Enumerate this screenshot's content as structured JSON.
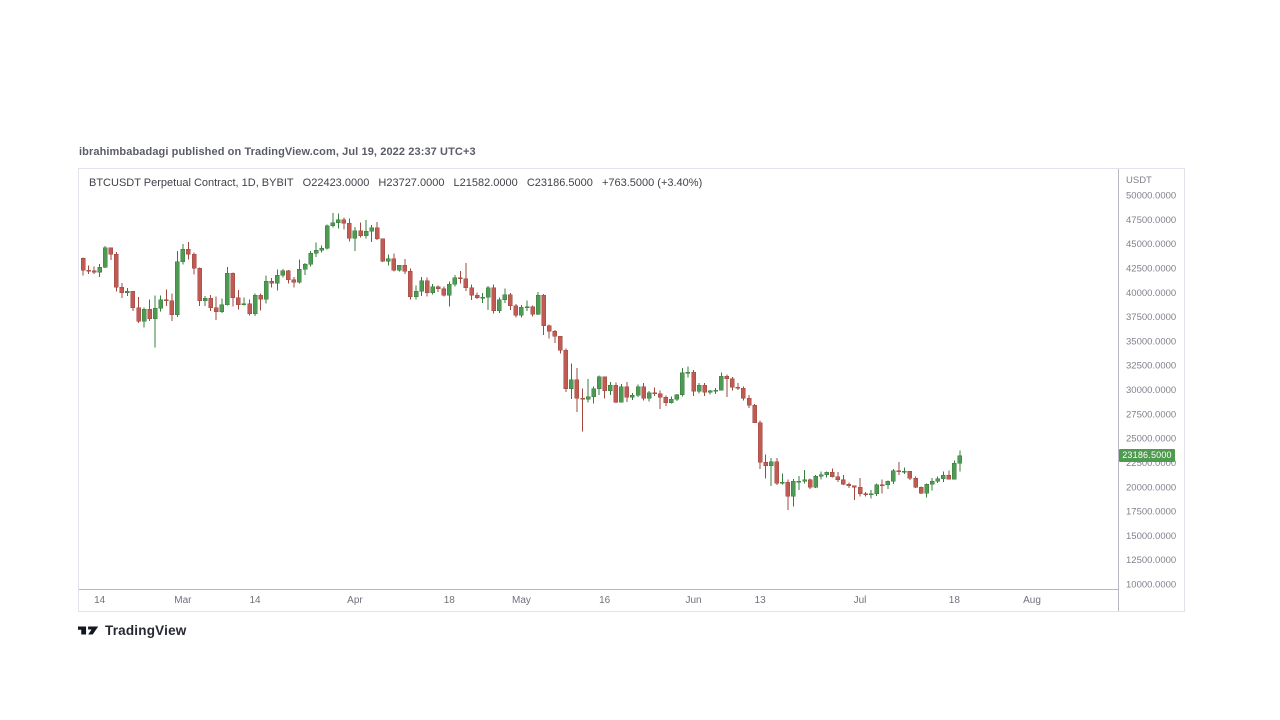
{
  "attribution": {
    "text": "ibrahimbabadagi published on TradingView.com, Jul 19, 2022 23:37 UTC+3"
  },
  "chart_header": {
    "symbol_title": "BTCUSDT Perpetual Contract, 1D, BYBIT",
    "open": "O22423.0000",
    "high": "H23727.0000",
    "low": "L21582.0000",
    "close": "C23186.5000",
    "change": "+763.5000 (+3.40%)"
  },
  "price_axis": {
    "currency": "USDT",
    "ticks": [
      "50000.0000",
      "47500.0000",
      "45000.0000",
      "42500.0000",
      "40000.0000",
      "37500.0000",
      "35000.0000",
      "32500.0000",
      "30000.0000",
      "27500.0000",
      "25000.0000",
      "22500.0000",
      "20000.0000",
      "17500.0000",
      "15000.0000",
      "12500.0000",
      "10000.0000"
    ],
    "last_price_label": "23186.5000",
    "last_price_value": 23186.5,
    "last_price_bg": "#4e9a4e"
  },
  "time_axis": {
    "ticks": [
      {
        "label": "14",
        "i": 3
      },
      {
        "label": "Mar",
        "i": 18
      },
      {
        "label": "14",
        "i": 31
      },
      {
        "label": "Apr",
        "i": 49
      },
      {
        "label": "18",
        "i": 66
      },
      {
        "label": "May",
        "i": 79
      },
      {
        "label": "16",
        "i": 94
      },
      {
        "label": "Jun",
        "i": 110
      },
      {
        "label": "13",
        "i": 122
      },
      {
        "label": "Jul",
        "i": 140
      },
      {
        "label": "18",
        "i": 157
      },
      {
        "label": "Aug",
        "i": 171
      }
    ]
  },
  "logo": {
    "text": "TradingView"
  },
  "chart_data": {
    "type": "candlestick",
    "title": "BTCUSDT Perpetual Contract, 1D, BYBIT",
    "symbol": "BTCUSDT",
    "exchange": "BYBIT",
    "interval": "1D",
    "quote_currency": "USDT",
    "start_date": "2022-02-11",
    "end_date": "2022-07-19",
    "ylim": [
      10000,
      50000
    ],
    "y_tick_step": 2500,
    "grid": false,
    "up_color": "#4f9a52",
    "up_border": "#377d3c",
    "down_color": "#c05b53",
    "down_border": "#9f4940",
    "last_close": 23186.5,
    "candles_format": [
      "open",
      "high",
      "low",
      "close"
    ],
    "candles": [
      [
        43500,
        43550,
        41700,
        42250
      ],
      [
        42250,
        42750,
        41880,
        42230
      ],
      [
        42230,
        42650,
        41900,
        42060
      ],
      [
        42060,
        42880,
        41550,
        42550
      ],
      [
        42550,
        44750,
        42480,
        44570
      ],
      [
        44570,
        44580,
        43330,
        43890
      ],
      [
        43890,
        44160,
        40070,
        40520
      ],
      [
        40520,
        40950,
        39430,
        39970
      ],
      [
        39970,
        40440,
        39640,
        40120
      ],
      [
        40120,
        40120,
        38060,
        38390
      ],
      [
        38390,
        39490,
        36830,
        37010
      ],
      [
        37010,
        38430,
        36350,
        38230
      ],
      [
        38230,
        39240,
        37050,
        37250
      ],
      [
        37250,
        39680,
        34320,
        38330
      ],
      [
        38330,
        39670,
        38010,
        39230
      ],
      [
        39230,
        40300,
        38590,
        39120
      ],
      [
        39120,
        39870,
        37020,
        37710
      ],
      [
        37710,
        44220,
        37450,
        43160
      ],
      [
        43160,
        44950,
        42830,
        44420
      ],
      [
        44420,
        45190,
        43350,
        43900
      ],
      [
        43900,
        44100,
        41830,
        42460
      ],
      [
        42460,
        42530,
        38580,
        39150
      ],
      [
        39150,
        39620,
        38600,
        39400
      ],
      [
        39400,
        39700,
        38090,
        38420
      ],
      [
        38420,
        39550,
        37170,
        38010
      ],
      [
        38010,
        39360,
        37870,
        38730
      ],
      [
        38730,
        42590,
        38660,
        41940
      ],
      [
        41940,
        42040,
        38550,
        39420
      ],
      [
        39420,
        40230,
        38230,
        38730
      ],
      [
        38730,
        39470,
        38660,
        38810
      ],
      [
        38810,
        39280,
        37590,
        37790
      ],
      [
        37790,
        39880,
        37580,
        39670
      ],
      [
        39670,
        39890,
        38130,
        39290
      ],
      [
        39290,
        41720,
        38850,
        41140
      ],
      [
        41140,
        41480,
        40500,
        40950
      ],
      [
        40950,
        42330,
        40190,
        41770
      ],
      [
        41770,
        42400,
        41500,
        42200
      ],
      [
        42200,
        42310,
        40920,
        41280
      ],
      [
        41280,
        41580,
        40470,
        41020
      ],
      [
        41020,
        43390,
        40890,
        42380
      ],
      [
        42380,
        43030,
        41770,
        42890
      ],
      [
        42890,
        44230,
        42660,
        44010
      ],
      [
        44010,
        45120,
        43600,
        44330
      ],
      [
        44330,
        44800,
        44080,
        44540
      ],
      [
        44540,
        46950,
        44420,
        46850
      ],
      [
        46850,
        48150,
        46670,
        47150
      ],
      [
        47150,
        48090,
        46580,
        47470
      ],
      [
        47470,
        47710,
        46450,
        47100
      ],
      [
        47100,
        47600,
        45220,
        45540
      ],
      [
        45540,
        46720,
        44260,
        46300
      ],
      [
        46300,
        47190,
        45620,
        45830
      ],
      [
        45830,
        47430,
        45540,
        46290
      ],
      [
        46290,
        46890,
        45150,
        46620
      ],
      [
        46620,
        47200,
        45390,
        45510
      ],
      [
        45510,
        45520,
        43130,
        43210
      ],
      [
        43210,
        43890,
        42730,
        43450
      ],
      [
        43450,
        43970,
        42110,
        42280
      ],
      [
        42280,
        42800,
        42130,
        42770
      ],
      [
        42770,
        43420,
        41870,
        42160
      ],
      [
        42160,
        42420,
        39250,
        39530
      ],
      [
        39530,
        40700,
        39280,
        40080
      ],
      [
        40080,
        41560,
        39620,
        41160
      ],
      [
        41160,
        41500,
        39560,
        39940
      ],
      [
        39940,
        40870,
        39770,
        40550
      ],
      [
        40550,
        40710,
        40010,
        40380
      ],
      [
        40380,
        40600,
        39550,
        39680
      ],
      [
        39680,
        41120,
        38540,
        40800
      ],
      [
        40800,
        41760,
        40570,
        41500
      ],
      [
        41500,
        42200,
        40910,
        41370
      ],
      [
        41370,
        43000,
        40150,
        40480
      ],
      [
        40480,
        40800,
        39180,
        39710
      ],
      [
        39710,
        39980,
        39290,
        39450
      ],
      [
        39450,
        39940,
        38870,
        39470
      ],
      [
        39470,
        40620,
        38200,
        40440
      ],
      [
        40440,
        40800,
        37830,
        38110
      ],
      [
        38110,
        39480,
        37890,
        39240
      ],
      [
        39240,
        40380,
        38890,
        39750
      ],
      [
        39750,
        39920,
        38180,
        38600
      ],
      [
        38600,
        38800,
        37410,
        37650
      ],
      [
        37650,
        38680,
        37400,
        38470
      ],
      [
        38470,
        39170,
        38070,
        38510
      ],
      [
        38510,
        38650,
        37500,
        37730
      ],
      [
        37730,
        40020,
        37660,
        39690
      ],
      [
        39690,
        39840,
        35590,
        36550
      ],
      [
        36550,
        36680,
        35260,
        36010
      ],
      [
        36010,
        36120,
        34800,
        35470
      ],
      [
        35470,
        35510,
        33700,
        34050
      ],
      [
        34050,
        34240,
        29750,
        30080
      ],
      [
        30080,
        32680,
        29040,
        31010
      ],
      [
        31010,
        32230,
        27700,
        29100
      ],
      [
        29100,
        30100,
        25700,
        28980
      ],
      [
        28980,
        31080,
        28680,
        29280
      ],
      [
        29280,
        30330,
        28550,
        30080
      ],
      [
        30080,
        31460,
        29440,
        31300
      ],
      [
        31300,
        31330,
        29050,
        29850
      ],
      [
        29850,
        30780,
        29450,
        30440
      ],
      [
        30440,
        30720,
        28590,
        28700
      ],
      [
        28700,
        30560,
        28640,
        30300
      ],
      [
        30300,
        30780,
        28710,
        29190
      ],
      [
        29190,
        29650,
        28940,
        29430
      ],
      [
        29430,
        30490,
        29250,
        30290
      ],
      [
        30290,
        30680,
        28880,
        29100
      ],
      [
        29100,
        29850,
        28790,
        29650
      ],
      [
        29650,
        30230,
        29330,
        29540
      ],
      [
        29540,
        29880,
        28020,
        29200
      ],
      [
        29200,
        29380,
        28280,
        28620
      ],
      [
        28620,
        29270,
        28550,
        28990
      ],
      [
        28990,
        29560,
        28830,
        29460
      ],
      [
        29460,
        32220,
        29300,
        31730
      ],
      [
        31730,
        32380,
        31210,
        31790
      ],
      [
        31790,
        31980,
        29330,
        29800
      ],
      [
        29800,
        30690,
        29600,
        30450
      ],
      [
        30450,
        30660,
        29340,
        29700
      ],
      [
        29700,
        29950,
        29480,
        29850
      ],
      [
        29850,
        30170,
        29560,
        29910
      ],
      [
        29910,
        31740,
        29890,
        31370
      ],
      [
        31370,
        31550,
        29220,
        31130
      ],
      [
        31130,
        31310,
        29880,
        30210
      ],
      [
        30210,
        30670,
        29950,
        30110
      ],
      [
        30110,
        30320,
        28890,
        29100
      ],
      [
        29100,
        29440,
        28100,
        28400
      ],
      [
        28400,
        28530,
        26580,
        26600
      ],
      [
        26600,
        26820,
        21800,
        22500
      ],
      [
        22500,
        23300,
        20850,
        22150
      ],
      [
        22150,
        22970,
        20100,
        22570
      ],
      [
        22570,
        22980,
        20200,
        20380
      ],
      [
        20380,
        21340,
        20230,
        20470
      ],
      [
        20470,
        20740,
        17600,
        19010
      ],
      [
        19010,
        20790,
        17960,
        20570
      ],
      [
        20570,
        21080,
        19650,
        20590
      ],
      [
        20590,
        21700,
        20350,
        20720
      ],
      [
        20720,
        20860,
        19770,
        19970
      ],
      [
        19970,
        21190,
        19890,
        21100
      ],
      [
        21100,
        21550,
        20740,
        21230
      ],
      [
        21230,
        21590,
        20930,
        21480
      ],
      [
        21480,
        21880,
        20970,
        21030
      ],
      [
        21030,
        21540,
        20510,
        20730
      ],
      [
        20730,
        21200,
        20190,
        20250
      ],
      [
        20250,
        20420,
        19850,
        20100
      ],
      [
        20100,
        20150,
        18630,
        19930
      ],
      [
        19930,
        20880,
        18980,
        19270
      ],
      [
        19270,
        19440,
        18980,
        19240
      ],
      [
        19240,
        19650,
        18790,
        19300
      ],
      [
        19300,
        20320,
        19060,
        20230
      ],
      [
        20230,
        20730,
        19310,
        20190
      ],
      [
        20190,
        20640,
        19770,
        20550
      ],
      [
        20550,
        21840,
        20270,
        21640
      ],
      [
        21640,
        22530,
        21210,
        21590
      ],
      [
        21590,
        21970,
        21330,
        21590
      ],
      [
        21590,
        21600,
        20670,
        20860
      ],
      [
        20860,
        21070,
        19890,
        19960
      ],
      [
        19960,
        20050,
        19240,
        19330
      ],
      [
        19330,
        20340,
        18910,
        20240
      ],
      [
        20240,
        20900,
        19620,
        20580
      ],
      [
        20580,
        21070,
        20370,
        20830
      ],
      [
        20830,
        21580,
        20470,
        21190
      ],
      [
        21190,
        21670,
        20760,
        20790
      ],
      [
        20790,
        22700,
        20770,
        22420
      ],
      [
        22423,
        23727,
        21582,
        23186.5
      ]
    ]
  }
}
